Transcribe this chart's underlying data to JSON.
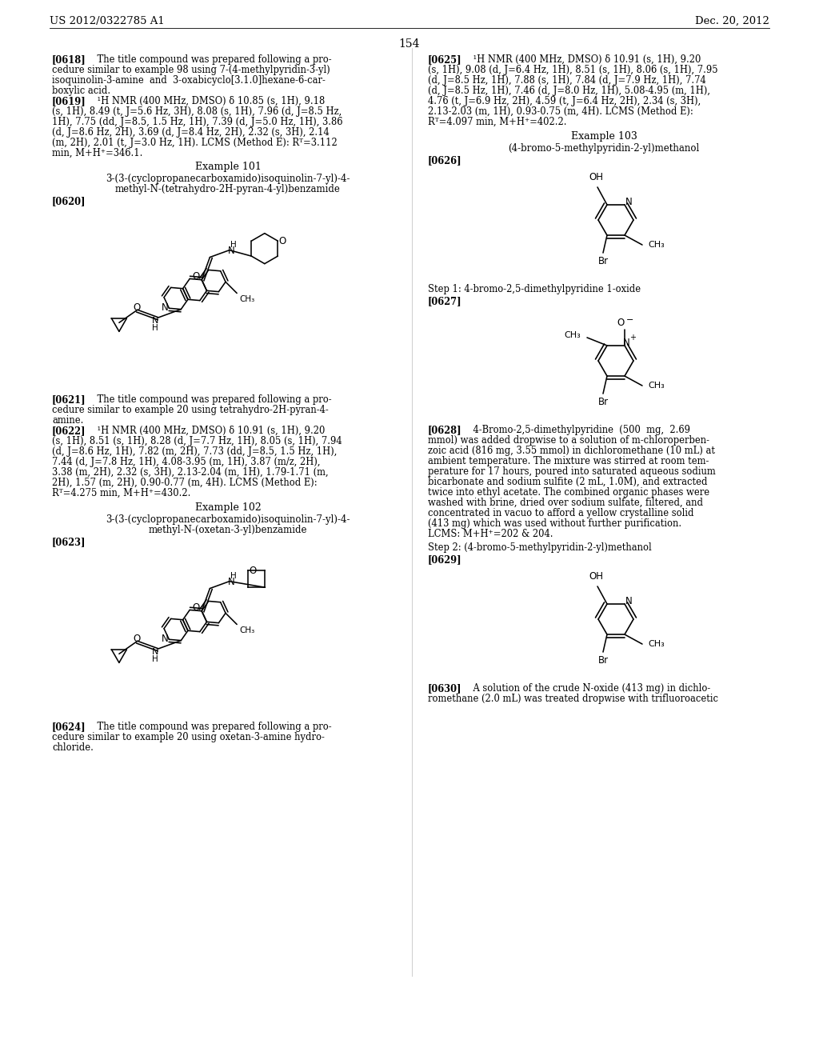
{
  "background_color": "#ffffff",
  "header_left": "US 2012/0322785 A1",
  "header_right": "Dec. 20, 2012",
  "page_number": "154"
}
